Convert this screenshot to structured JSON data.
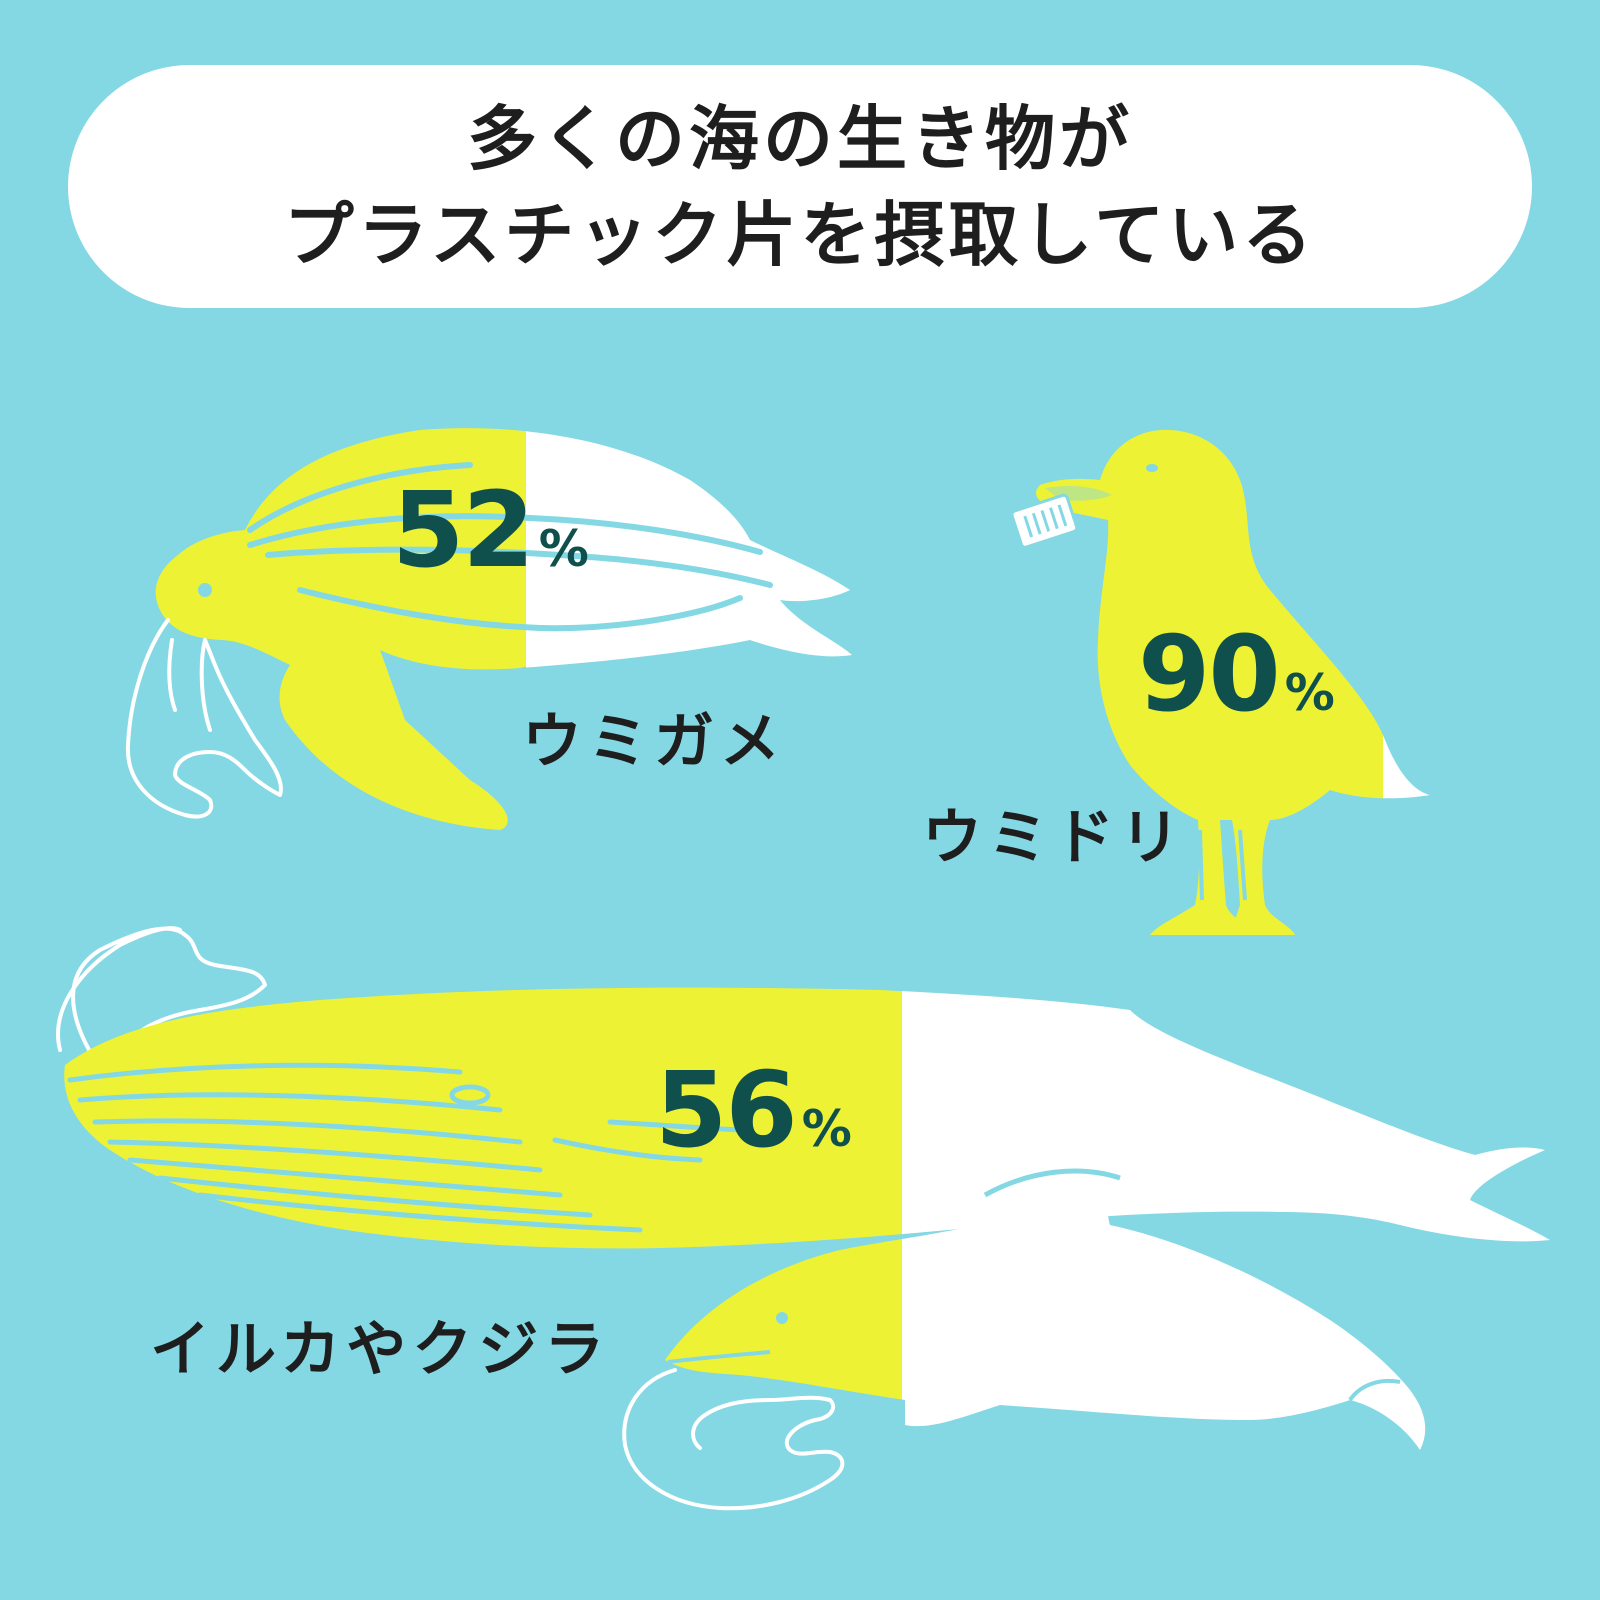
{
  "title": {
    "line1": "多くの海の生き物が",
    "line2": "プラスチック片を摂取している"
  },
  "animals": [
    {
      "label": "ウミガメ",
      "percent_value": "52",
      "percent_unit": "%",
      "fill_fraction": 0.52
    },
    {
      "label": "ウミドリ",
      "percent_value": "90",
      "percent_unit": "%",
      "fill_fraction": 0.9
    },
    {
      "label": "イルカやクジラ",
      "percent_value": "56",
      "percent_unit": "%",
      "fill_fraction": 0.56
    }
  ],
  "colors": {
    "background": "#84d8e4",
    "banner": "#ffffff",
    "fill": "#eef235",
    "empty": "#ffffff",
    "percent_text": "#0f4f4c",
    "label_text": "#1e1e1e",
    "outline": "#ffffff"
  },
  "icons": [
    "sea-turtle-icon",
    "seabird-icon",
    "whale-icon",
    "dolphin-icon",
    "plastic-bag-icon",
    "bottle-cap-icon"
  ]
}
